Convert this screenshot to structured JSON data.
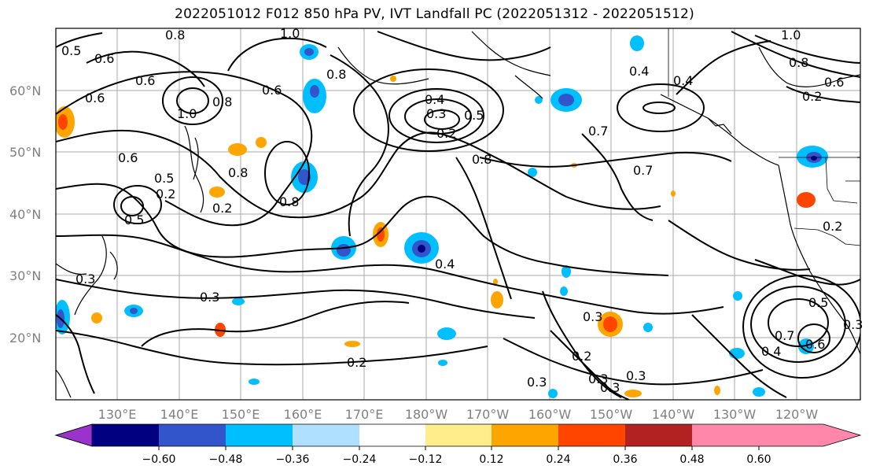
{
  "title": "2022051012 F012 850 hPa PV, IVT Landfall PC (2022051312 - 2022051512)",
  "lat_labels": [
    "60°N",
    "50°N",
    "40°N",
    "30°N",
    "20°N"
  ],
  "lon_labels": [
    "130°E",
    "140°E",
    "150°E",
    "160°E",
    "170°E",
    "180°W",
    "170°W",
    "160°W",
    "150°W",
    "140°W",
    "130°W",
    "120°W"
  ],
  "colorbar": {
    "colors": [
      "#9933cc",
      "#000080",
      "#3355cc",
      "#00bfff",
      "#b0e0ff",
      "#ffffff",
      "#ffec8b",
      "#ffa500",
      "#ff4500",
      "#b22222",
      "#ff88aa"
    ],
    "tick_labels": [
      "−0.60",
      "−0.48",
      "−0.36",
      "−0.24",
      "−0.12",
      "0.12",
      "0.24",
      "0.36",
      "0.48",
      "0.60"
    ]
  },
  "contour_labels": [
    "0.5",
    "0.6",
    "0.8",
    "1.0",
    "0.6",
    "0.6",
    "1.0",
    "0.8",
    "0.6",
    "0.5",
    "0.2",
    "0.4",
    "0.3",
    "0.2",
    "0.3",
    "0.2",
    "0.8",
    "1.0",
    "0.8",
    "0.4",
    "0.6",
    "0.2",
    "0.7",
    "0.7",
    "0.8",
    "0.6",
    "0.4",
    "0.2",
    "0.3",
    "0.2",
    "0.5",
    "0.7",
    "0.6",
    "0.4",
    "0.3",
    "0.3",
    "0.3",
    "0.3",
    "0.2",
    "0.4",
    "0.5",
    "0.3",
    "0.8",
    "0.8",
    "0.5",
    "0.3"
  ]
}
